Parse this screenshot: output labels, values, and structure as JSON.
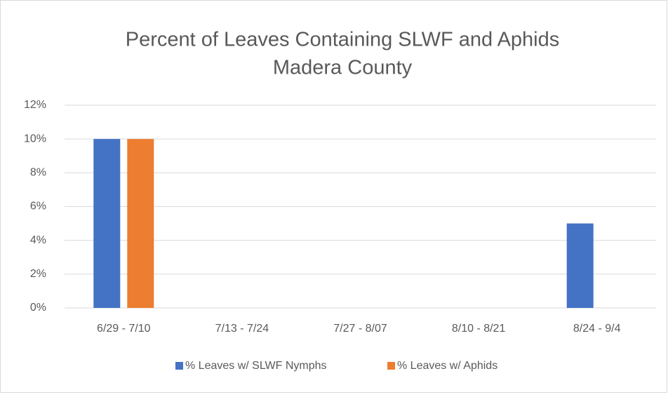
{
  "chart_data": {
    "type": "bar",
    "title": [
      "Percent of Leaves Containing SLWF and Aphids",
      "Madera County"
    ],
    "categories": [
      "6/29 - 7/10",
      "7/13 - 7/24",
      "7/27 - 8/07",
      "8/10 - 8/21",
      "8/24 - 9/4"
    ],
    "series": [
      {
        "name": "% Leaves w/ SLWF Nymphs",
        "color": "#4472c4",
        "values": [
          10,
          0,
          0,
          0,
          5
        ]
      },
      {
        "name": "% Leaves w/ Aphids",
        "color": "#ed7d31",
        "values": [
          10,
          0,
          0,
          0,
          0
        ]
      }
    ],
    "ylim": [
      0,
      12
    ],
    "yticks": [
      {
        "value": 0,
        "label": "0%"
      },
      {
        "value": 2,
        "label": "2%"
      },
      {
        "value": 4,
        "label": "4%"
      },
      {
        "value": 6,
        "label": "6%"
      },
      {
        "value": 8,
        "label": "8%"
      },
      {
        "value": 10,
        "label": "10%"
      },
      {
        "value": 12,
        "label": "12%"
      }
    ],
    "grid": true,
    "legend": "bottom"
  }
}
